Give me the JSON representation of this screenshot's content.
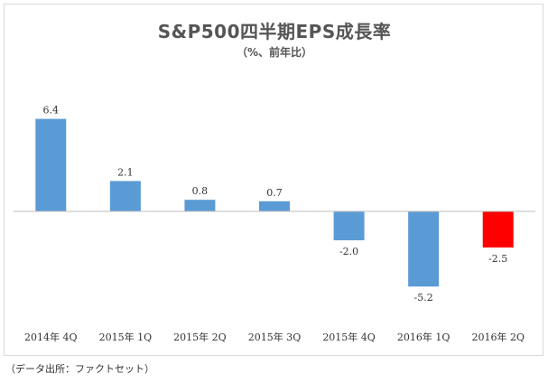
{
  "chart_data": {
    "type": "bar",
    "title": "S&P500四半期EPS成長率",
    "subtitle": "（%、前年比）",
    "categories": [
      "2014年 4Q",
      "2015年 1Q",
      "2015年 2Q",
      "2015年 3Q",
      "2015年 4Q",
      "2016年 1Q",
      "2016年 2Q"
    ],
    "values": [
      6.4,
      2.1,
      0.8,
      0.7,
      -2.0,
      -5.2,
      -2.5
    ],
    "data_labels": [
      "6.4",
      "2.1",
      "0.8",
      "0.7",
      "-2.0",
      "-5.2",
      "-2.5"
    ],
    "colors": [
      "#5b9bd5",
      "#5b9bd5",
      "#5b9bd5",
      "#5b9bd5",
      "#5b9bd5",
      "#5b9bd5",
      "#ff0000"
    ],
    "ylim": [
      -5.2,
      6.4
    ],
    "grid": false,
    "legend": "none"
  },
  "source_note": "（データ出所：ファクトセット）"
}
